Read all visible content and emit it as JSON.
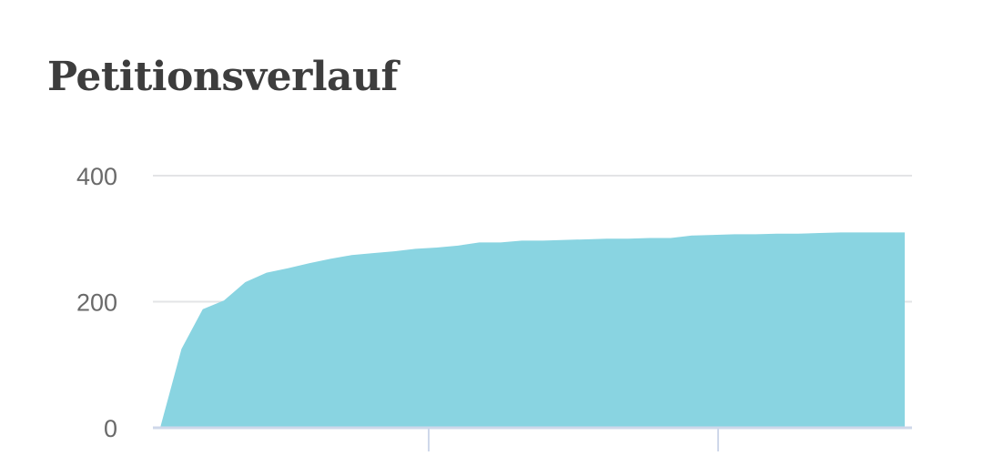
{
  "chart_data": {
    "type": "area",
    "title": "Petitionsverlauf",
    "xlabel": "",
    "ylabel": "",
    "ylim": [
      0,
      400
    ],
    "yticks": [
      0,
      200,
      400
    ],
    "grid": true,
    "legend": "none",
    "series": [
      {
        "values": [
          0,
          125,
          188,
          202,
          231,
          246,
          253,
          261,
          268,
          274,
          277,
          280,
          284,
          286,
          289,
          294,
          294,
          297,
          297,
          298,
          299,
          300,
          300,
          301,
          301,
          305,
          306,
          307,
          307,
          308,
          308,
          309,
          310,
          310,
          310,
          310
        ],
        "color": "#87d3e0"
      }
    ]
  }
}
